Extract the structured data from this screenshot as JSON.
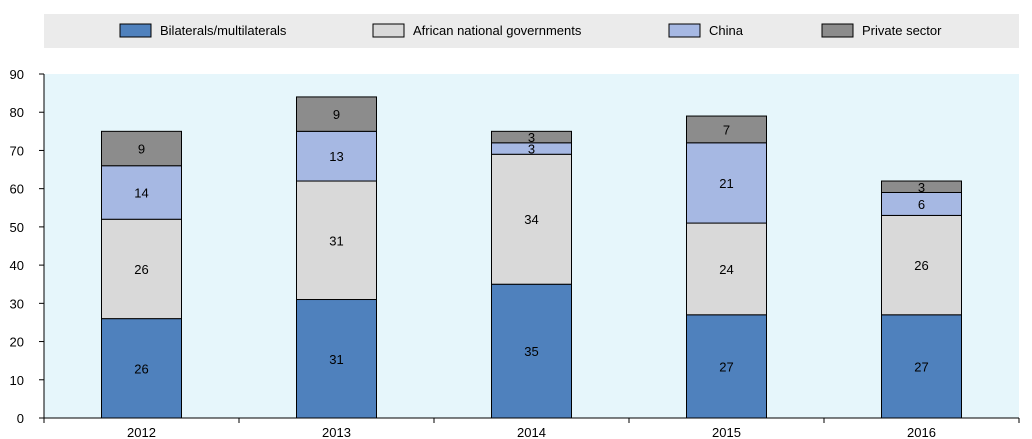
{
  "chart_data": {
    "type": "bar",
    "stacked": true,
    "categories": [
      "2012",
      "2013",
      "2014",
      "2015",
      "2016"
    ],
    "series": [
      {
        "name": "Bilaterals/multilaterals",
        "color": "#4f81bd",
        "values": [
          26,
          31,
          35,
          27,
          27
        ]
      },
      {
        "name": "African national governments",
        "color": "#d9d9d9",
        "values": [
          26,
          31,
          34,
          24,
          26
        ]
      },
      {
        "name": "China",
        "color": "#a6b8e3",
        "values": [
          14,
          13,
          3,
          21,
          6
        ]
      },
      {
        "name": "Private sector",
        "color": "#8c8c8c",
        "values": [
          9,
          9,
          3,
          7,
          3
        ]
      }
    ],
    "ylim": [
      0,
      90
    ],
    "yticks": [
      0,
      10,
      20,
      30,
      40,
      50,
      60,
      70,
      80,
      90
    ],
    "legend_position": "top",
    "grid": false,
    "plot_background": "#e6f6fb",
    "legend_background": "#ebebeb"
  }
}
